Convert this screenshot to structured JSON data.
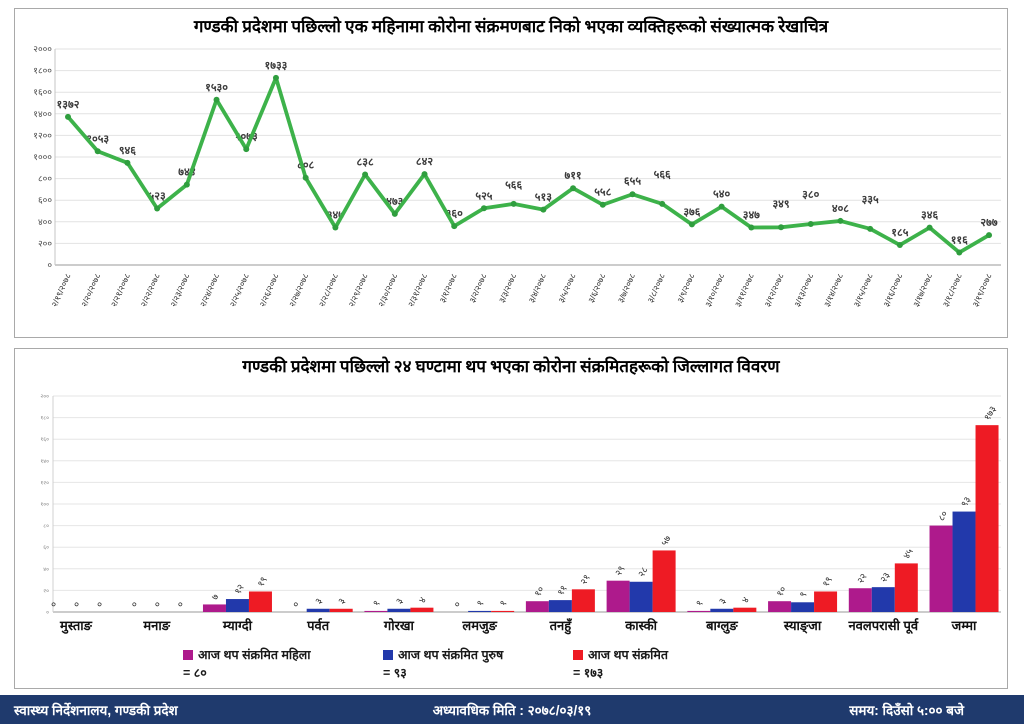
{
  "chart_data": [
    {
      "type": "line",
      "title": "गण्डकी प्रदेशमा पछिल्लो एक महिनामा कोरोना संक्रमणबाट निको भएका व्यक्तिहरूको संख्यात्मक रेखाचित्र",
      "line_color": "#3db24a",
      "marker_color": "#2f9e3e",
      "label_color": "#3a3a3a",
      "grid": true,
      "ylim": [
        0,
        2000
      ],
      "ytick_step": 200,
      "ytick_labels": [
        "०",
        "२००",
        "४००",
        "६००",
        "८००",
        "१०००",
        "१२००",
        "१४००",
        "१६००",
        "१८००",
        "२०००"
      ],
      "x": [
        "२/१९/२०७८",
        "२/२०/२०७८",
        "२/२१/२०७८",
        "२/२२/२०७८",
        "२/२३/२०७८",
        "२/२४/२०७८",
        "२/२५/२०७८",
        "२/२६/२०७८",
        "२/२७/२०७८",
        "२/२८/२०७८",
        "२/२९/२०७८",
        "२/३०/२०७८",
        "२/३१/२०७८",
        "३/१/२०७८",
        "३/२/२०७८",
        "३/३/२०७८",
        "३/४/२०७८",
        "३/५/२०७८",
        "३/६/२०७८",
        "३/७/२०७८",
        "३/८/२०७८",
        "३/९/२०७८",
        "३/१०/२०७८",
        "३/११/२०७८",
        "३/१२/२०७८",
        "३/१३/२०७८",
        "३/१४/२०७८",
        "३/१५/२०७८",
        "३/१६/२०७८",
        "३/१७/२०७८",
        "३/१८/२०७८",
        "३/१९/२०७८"
      ],
      "values": [
        1372,
        1053,
        946,
        523,
        744,
        1530,
        1073,
        1733,
        808,
        347,
        838,
        473,
        842,
        360,
        525,
        566,
        513,
        711,
        558,
        655,
        566,
        376,
        540,
        347,
        349,
        380,
        408,
        335,
        185,
        346,
        116,
        277
      ],
      "value_labels": [
        "१३७२",
        "१०५३",
        "९४६",
        "५२३",
        "७४४",
        "१५३०",
        "१०७३",
        "१७३३",
        "८०८",
        "३४७",
        "८३८",
        "४७३",
        "८४२",
        "३६०",
        "५२५",
        "५६६",
        "५१३",
        "७११",
        "५५८",
        "६५५",
        "५६६",
        "३७६",
        "५४०",
        "३४७",
        "३४९",
        "३८०",
        "४०८",
        "३३५",
        "१८५",
        "३४६",
        "११६",
        "२७७"
      ]
    },
    {
      "type": "bar",
      "title": "गण्डकी प्रदेशमा पछिल्लो २४ घण्टामा थप भएका कोरोना संक्रमितहरूको जिल्लागत विवरण",
      "ylim": [
        0,
        200
      ],
      "ytick_step": 20,
      "ytick_labels": [
        "०",
        "२०",
        "४०",
        "६०",
        "८०",
        "१००",
        "१२०",
        "१४०",
        "१६०",
        "१८०",
        "२००"
      ],
      "categories": [
        "मुस्ताङ",
        "मनाङ",
        "म्याग्दी",
        "पर्वत",
        "गोरखा",
        "लमजुङ",
        "तनहुँ",
        "कास्की",
        "बाग्लुङ",
        "स्याङ्जा",
        "नवलपरासी पूर्व",
        "जम्मा"
      ],
      "series": [
        {
          "name": "आज थप संक्रमित महिला",
          "color": "#ae1a8c",
          "values": [
            0,
            0,
            7,
            0,
            1,
            0,
            10,
            29,
            1,
            10,
            22,
            80
          ],
          "value_labels": [
            "०",
            "०",
            "७",
            "०",
            "१",
            "०",
            "१०",
            "२९",
            "१",
            "१०",
            "२२",
            "८०"
          ]
        },
        {
          "name": "आज थप संक्रमित पुरुष",
          "color": "#2239ab",
          "values": [
            0,
            0,
            12,
            3,
            3,
            1,
            11,
            28,
            3,
            9,
            23,
            93
          ],
          "value_labels": [
            "०",
            "०",
            "१२",
            "३",
            "३",
            "१",
            "११",
            "२८",
            "३",
            "९",
            "२३",
            "९३"
          ]
        },
        {
          "name": "आज थप संक्रमित",
          "color": "#ee1b24",
          "values": [
            0,
            0,
            19,
            3,
            4,
            1,
            21,
            57,
            4,
            19,
            45,
            173
          ],
          "value_labels": [
            "०",
            "०",
            "१९",
            "३",
            "४",
            "१",
            "२१",
            "५७",
            "४",
            "१९",
            "४५",
            "१७३"
          ]
        }
      ],
      "legend_values": [
        "= ८०",
        "= ९३",
        "= १७३"
      ],
      "legend_position": "bottom"
    }
  ],
  "footer": {
    "org": "स्वास्थ्य निर्देशनालय, गण्डकी प्रदेश",
    "updated": "अध्यावधिक मिति : २०७८/०३/१९",
    "time": "समय: दिउँसो ५:०० बजे"
  },
  "colors": {
    "footer_bg": "#1f3a6d",
    "grid": "#e2e2e2",
    "axis": "#999999"
  }
}
